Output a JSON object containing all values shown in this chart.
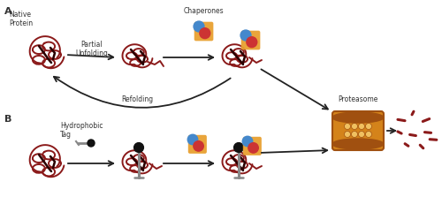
{
  "bg_color": "#ffffff",
  "protein_color": "#8B1A1A",
  "protein_dark": "#2A0000",
  "chaperone_orange": "#E8A030",
  "chaperone_blue": "#4488CC",
  "chaperone_red": "#CC3333",
  "proteasome_orange": "#D4831A",
  "proteasome_light": "#F0C060",
  "proteasome_dark": "#A05010",
  "tag_gray": "#888888",
  "tag_black": "#111111",
  "arrow_color": "#222222",
  "text_color": "#333333",
  "label_A": "A",
  "label_B": "B",
  "text_native": "Native\nProtein",
  "text_partial": "Partial\nUnfolding",
  "text_chaperones": "Chaperones",
  "text_refolding": "Refolding",
  "text_proteasome": "Proteasome",
  "text_hydrophobic": "Hydrophobic\nTag",
  "font_size_label": 8,
  "font_size_text": 5.5
}
